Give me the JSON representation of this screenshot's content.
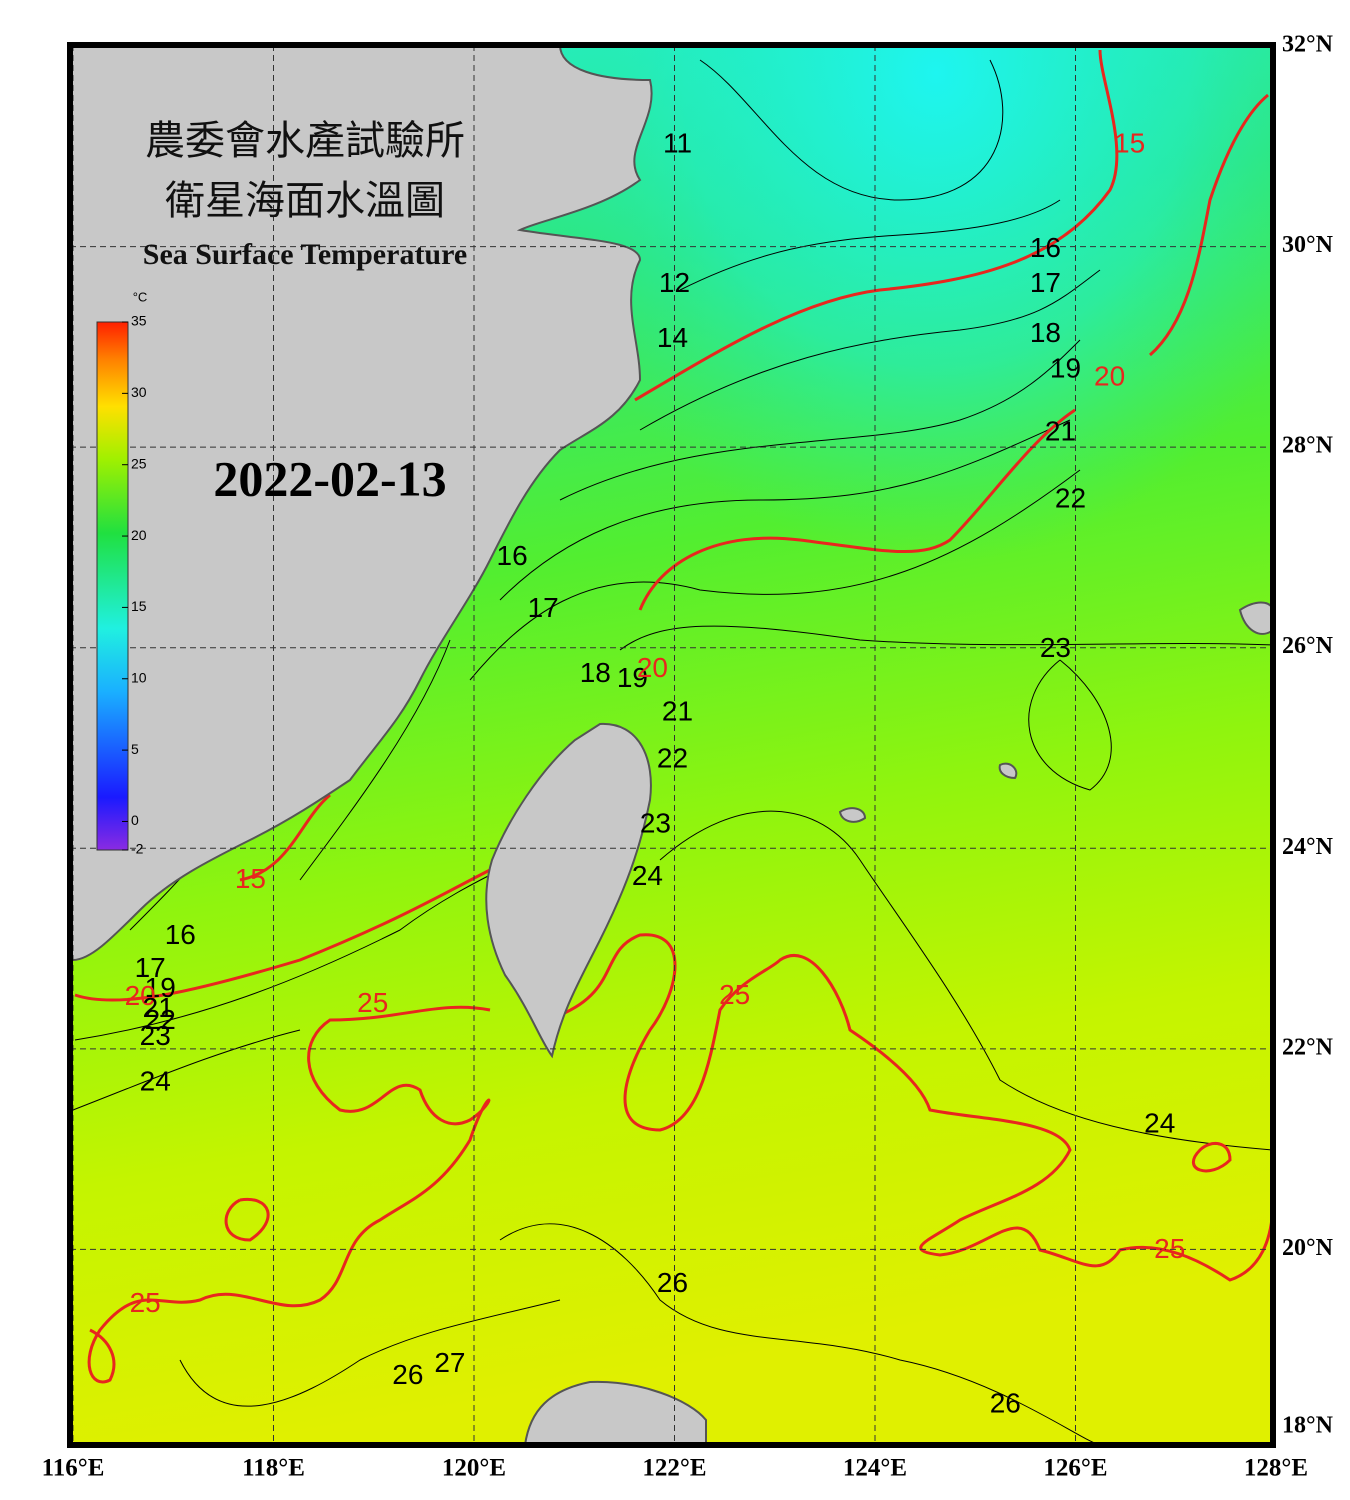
{
  "header": {
    "title_line_1": "農委會水產試驗所",
    "title_line_2": "衛星海面水溫圖",
    "title_en": "Sea Surface Temperature",
    "date": "2022-02-13"
  },
  "colorbar": {
    "unit": "°C",
    "range": [
      -2,
      35
    ],
    "ticks": [
      35,
      30,
      25,
      20,
      15,
      10,
      5,
      0,
      -2
    ]
  },
  "map": {
    "lon_range": [
      116,
      128
    ],
    "lat_range": [
      18,
      32
    ],
    "grid": true,
    "lon_ticks": [
      {
        "value": 116,
        "label": "116°E"
      },
      {
        "value": 118,
        "label": "118°E"
      },
      {
        "value": 120,
        "label": "120°E"
      },
      {
        "value": 122,
        "label": "122°E"
      },
      {
        "value": 124,
        "label": "124°E"
      },
      {
        "value": 126,
        "label": "126°E"
      },
      {
        "value": 128,
        "label": "128°E"
      }
    ],
    "lat_ticks": [
      {
        "value": 32,
        "label": "32°N"
      },
      {
        "value": 30,
        "label": "30°N"
      },
      {
        "value": 28,
        "label": "28°N"
      },
      {
        "value": 26,
        "label": "26°N"
      },
      {
        "value": 24,
        "label": "24°N"
      },
      {
        "value": 22,
        "label": "22°N"
      },
      {
        "value": 20,
        "label": "20°N"
      },
      {
        "value": 18,
        "label": "18°N"
      }
    ],
    "highlight_levels": [
      15,
      20,
      25
    ],
    "highlight_color": "#e8261e",
    "contour_color": "#000000",
    "contour_labels": [
      {
        "value": 11,
        "lon": 122.03,
        "lat": 31.01
      },
      {
        "value": 15,
        "lon": 126.54,
        "lat": 31.01
      },
      {
        "value": 12,
        "lon": 122.0,
        "lat": 29.62
      },
      {
        "value": 14,
        "lon": 121.98,
        "lat": 29.07
      },
      {
        "value": 16,
        "lon": 125.7,
        "lat": 29.97
      },
      {
        "value": 17,
        "lon": 125.7,
        "lat": 29.62
      },
      {
        "value": 18,
        "lon": 125.7,
        "lat": 29.12
      },
      {
        "value": 19,
        "lon": 125.9,
        "lat": 28.77
      },
      {
        "value": 20,
        "lon": 126.34,
        "lat": 28.69
      },
      {
        "value": 21,
        "lon": 125.85,
        "lat": 28.14
      },
      {
        "value": 22,
        "lon": 125.95,
        "lat": 27.47
      },
      {
        "value": 23,
        "lon": 125.8,
        "lat": 25.98
      },
      {
        "value": 16,
        "lon": 120.38,
        "lat": 26.9
      },
      {
        "value": 17,
        "lon": 120.69,
        "lat": 26.38
      },
      {
        "value": 18,
        "lon": 121.21,
        "lat": 25.73
      },
      {
        "value": 19,
        "lon": 121.58,
        "lat": 25.68
      },
      {
        "value": 20,
        "lon": 121.78,
        "lat": 25.78
      },
      {
        "value": 21,
        "lon": 122.03,
        "lat": 25.35
      },
      {
        "value": 22,
        "lon": 121.98,
        "lat": 24.88
      },
      {
        "value": 23,
        "lon": 121.81,
        "lat": 24.23
      },
      {
        "value": 24,
        "lon": 121.73,
        "lat": 23.71
      },
      {
        "value": 15,
        "lon": 117.77,
        "lat": 23.68
      },
      {
        "value": 16,
        "lon": 117.07,
        "lat": 23.12
      },
      {
        "value": 17,
        "lon": 116.77,
        "lat": 22.79
      },
      {
        "value": 19,
        "lon": 116.87,
        "lat": 22.59
      },
      {
        "value": 20,
        "lon": 116.67,
        "lat": 22.51
      },
      {
        "value": 21,
        "lon": 116.85,
        "lat": 22.39
      },
      {
        "value": 22,
        "lon": 116.87,
        "lat": 22.27
      },
      {
        "value": 23,
        "lon": 116.82,
        "lat": 22.11
      },
      {
        "value": 25,
        "lon": 118.99,
        "lat": 22.44
      },
      {
        "value": 25,
        "lon": 122.6,
        "lat": 22.52
      },
      {
        "value": 24,
        "lon": 116.82,
        "lat": 21.66
      },
      {
        "value": 24,
        "lon": 126.84,
        "lat": 21.24
      },
      {
        "value": 25,
        "lon": 126.94,
        "lat": 19.99
      },
      {
        "value": 26,
        "lon": 121.98,
        "lat": 19.65
      },
      {
        "value": 25,
        "lon": 116.72,
        "lat": 19.45
      },
      {
        "value": 26,
        "lon": 119.34,
        "lat": 18.73
      },
      {
        "value": 27,
        "lon": 119.76,
        "lat": 18.85
      },
      {
        "value": 26,
        "lon": 125.3,
        "lat": 18.45
      }
    ]
  }
}
